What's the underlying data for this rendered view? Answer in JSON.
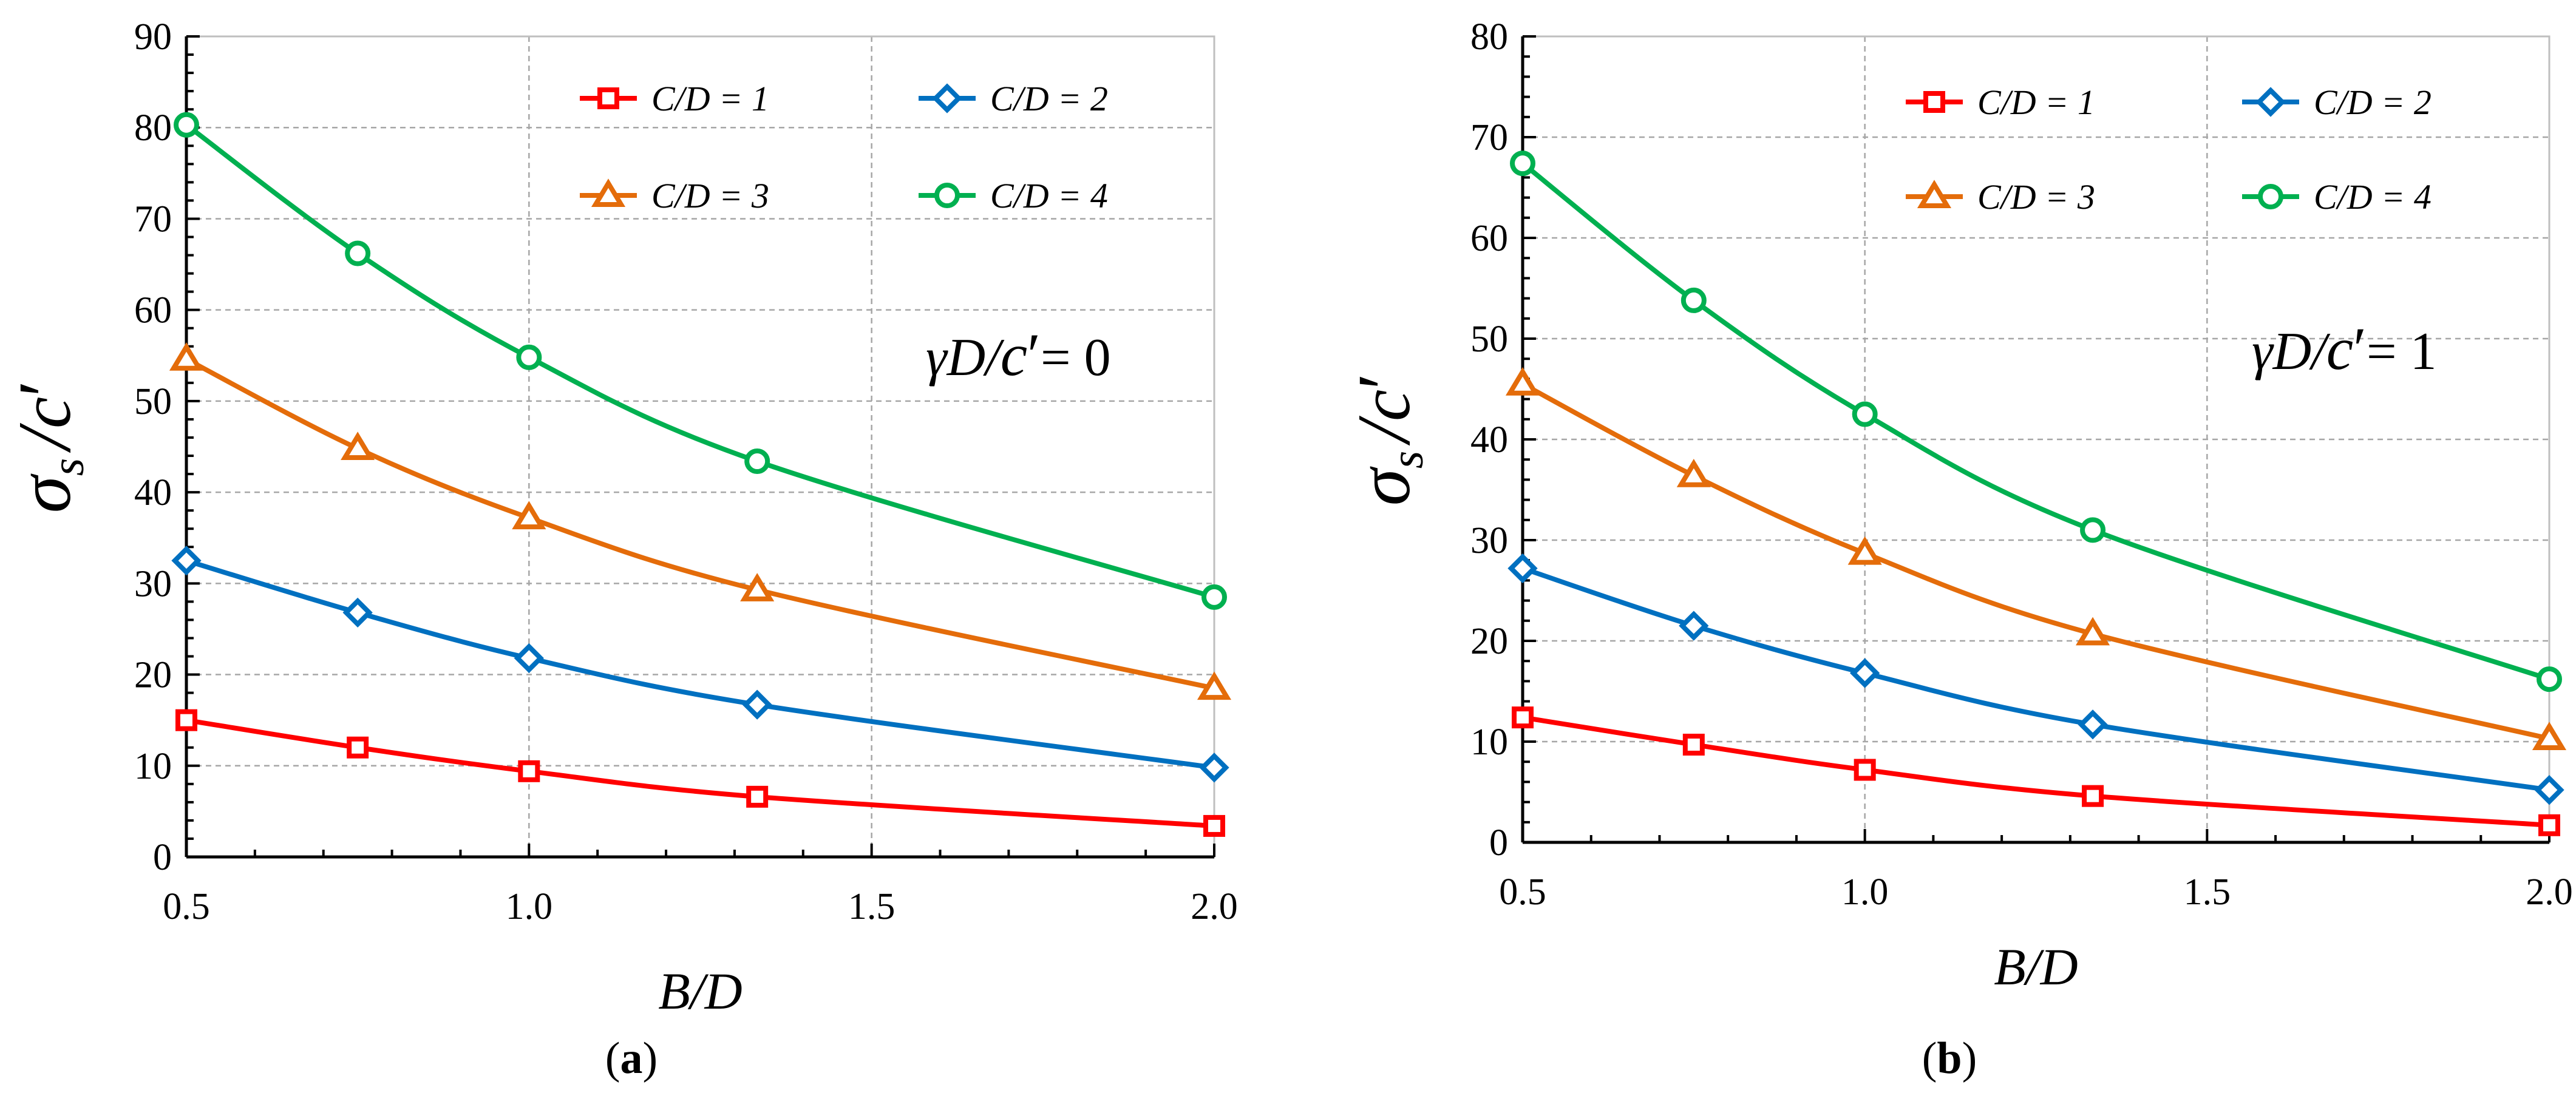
{
  "chart_data": [
    {
      "type": "line",
      "panel_label": "a",
      "annotation": {
        "prefix": "γD/",
        "c": "c",
        "prime": "′",
        "suffix": "= 0"
      },
      "xlabel": "B/D",
      "ylabel": {
        "sigma": "σ",
        "sub": "s",
        "slash": "/",
        "c": "c",
        "prime": "′"
      },
      "xlim": [
        0.5,
        2.0
      ],
      "ylim": [
        0,
        90
      ],
      "x_ticks": [
        "0.5",
        "1.0",
        "1.5",
        "2.0"
      ],
      "y_ticks": [
        "0",
        "10",
        "20",
        "30",
        "40",
        "50",
        "60",
        "70",
        "80",
        "90"
      ],
      "grid": true,
      "legend_position": "top-right",
      "x": [
        0.5,
        0.75,
        1.0,
        1.333,
        2.0
      ],
      "series": [
        {
          "name": "C/D = 1",
          "color": "#ff0000",
          "marker": "square",
          "values": [
            15.0,
            12.0,
            9.4,
            6.6,
            3.4
          ]
        },
        {
          "name": "C/D = 2",
          "color": "#0070c0",
          "marker": "diamond",
          "values": [
            32.5,
            26.8,
            21.8,
            16.7,
            9.8
          ]
        },
        {
          "name": "C/D = 3",
          "color": "#e46c0a",
          "marker": "triangle",
          "values": [
            54.6,
            44.8,
            37.2,
            29.3,
            18.5
          ]
        },
        {
          "name": "C/D = 4",
          "color": "#00b050",
          "marker": "circle",
          "values": [
            80.3,
            66.2,
            54.8,
            43.4,
            28.5
          ]
        }
      ]
    },
    {
      "type": "line",
      "panel_label": "b",
      "annotation": {
        "prefix": "γD/",
        "c": "c",
        "prime": "′",
        "suffix": "= 1"
      },
      "xlabel": "B/D",
      "ylabel": {
        "sigma": "σ",
        "sub": "s",
        "slash": "/",
        "c": "c",
        "prime": "′"
      },
      "xlim": [
        0.5,
        2.0
      ],
      "ylim": [
        0,
        80
      ],
      "x_ticks": [
        "0.5",
        "1.0",
        "1.5",
        "2.0"
      ],
      "y_ticks": [
        "0",
        "10",
        "20",
        "30",
        "40",
        "50",
        "60",
        "70",
        "80"
      ],
      "grid": true,
      "legend_position": "top-right",
      "x": [
        0.5,
        0.75,
        1.0,
        1.333,
        2.0
      ],
      "series": [
        {
          "name": "C/D = 1",
          "color": "#ff0000",
          "marker": "square",
          "values": [
            12.4,
            9.7,
            7.2,
            4.6,
            1.7
          ]
        },
        {
          "name": "C/D = 2",
          "color": "#0070c0",
          "marker": "diamond",
          "values": [
            27.2,
            21.5,
            16.8,
            11.7,
            5.2
          ]
        },
        {
          "name": "C/D = 3",
          "color": "#e46c0a",
          "marker": "triangle",
          "values": [
            45.5,
            36.4,
            28.7,
            20.7,
            10.3
          ]
        },
        {
          "name": "C/D = 4",
          "color": "#00b050",
          "marker": "circle",
          "values": [
            67.4,
            53.8,
            42.5,
            31.0,
            16.2
          ]
        }
      ]
    }
  ]
}
